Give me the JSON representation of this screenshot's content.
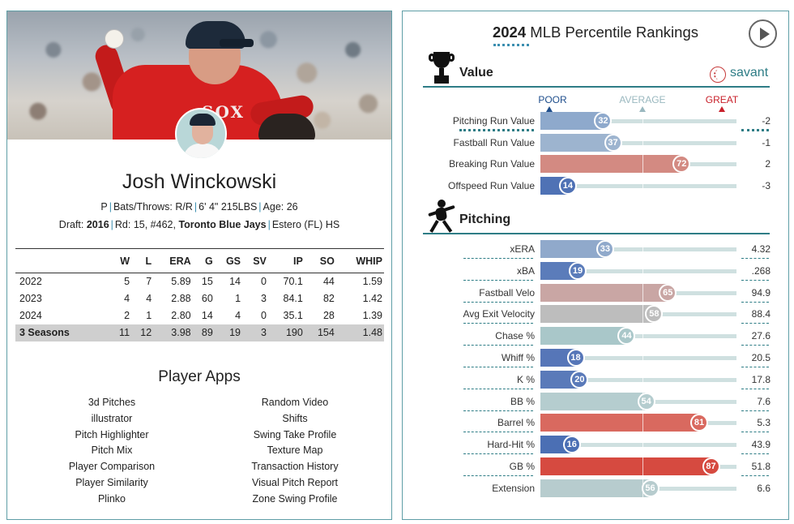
{
  "player": {
    "name": "Josh Winckowski",
    "position": "P",
    "bats_throws": "Bats/Throws: R/R",
    "height_weight": "6' 4\" 215LBS",
    "age": "Age: 26",
    "draft_label": "Draft:",
    "draft_year": "2016",
    "draft_round": "Rd: 15, #462,",
    "draft_team": "Toronto Blue Jays",
    "school": "Estero (FL) HS",
    "jersey_text": "SOX"
  },
  "stats": {
    "headers": [
      "",
      "W",
      "L",
      "ERA",
      "G",
      "GS",
      "SV",
      "IP",
      "SO",
      "WHIP"
    ],
    "rows": [
      [
        "2022",
        "5",
        "7",
        "5.89",
        "15",
        "14",
        "0",
        "70.1",
        "44",
        "1.59"
      ],
      [
        "2023",
        "4",
        "4",
        "2.88",
        "60",
        "1",
        "3",
        "84.1",
        "82",
        "1.42"
      ],
      [
        "2024",
        "2",
        "1",
        "2.80",
        "14",
        "4",
        "0",
        "35.1",
        "28",
        "1.39"
      ]
    ],
    "total": [
      "3 Seasons",
      "11",
      "12",
      "3.98",
      "89",
      "19",
      "3",
      "190",
      "154",
      "1.48"
    ]
  },
  "apps": {
    "title": "Player Apps",
    "left": [
      "3d Pitches",
      "illustrator",
      "Pitch Highlighter",
      "Pitch Mix",
      "Player Comparison",
      "Player Similarity",
      "Plinko"
    ],
    "right": [
      "Random Video",
      "Shifts",
      "Swing Take Profile",
      "Texture Map",
      "Transaction History",
      "Visual Pitch Report",
      "Zone Swing Profile"
    ]
  },
  "rankings": {
    "year": "2024",
    "title": "MLB Percentile Rankings",
    "brand": "savant",
    "scale": {
      "poor": "POOR",
      "average": "AVERAGE",
      "great": "GREAT",
      "poor_color": "#1f4e8c",
      "average_color": "#9ab8bf",
      "great_color": "#c8202a"
    },
    "sections": [
      {
        "label": "Value",
        "icon": "trophy-icon",
        "rows": [
          {
            "metric": "Pitching Run Value",
            "percentile": 32,
            "value": "-2",
            "color": "#8ea9cc"
          },
          {
            "metric": "Fastball Run Value",
            "percentile": 37,
            "value": "-1",
            "color": "#9db4cf"
          },
          {
            "metric": "Breaking Run Value",
            "percentile": 72,
            "value": "2",
            "color": "#d38a82"
          },
          {
            "metric": "Offspeed Run Value",
            "percentile": 14,
            "value": "-3",
            "color": "#4f72b5"
          }
        ]
      },
      {
        "label": "Pitching",
        "icon": "pitcher-icon",
        "rows": [
          {
            "metric": "xERA",
            "percentile": 33,
            "value": "4.32",
            "color": "#90a9cb"
          },
          {
            "metric": "xBA",
            "percentile": 19,
            "value": ".268",
            "color": "#5b7cba"
          },
          {
            "metric": "Fastball Velo",
            "percentile": 65,
            "value": "94.9",
            "color": "#c9a6a4"
          },
          {
            "metric": "Avg Exit Velocity",
            "percentile": 58,
            "value": "88.4",
            "color": "#bdbdbd"
          },
          {
            "metric": "Chase %",
            "percentile": 44,
            "value": "27.6",
            "color": "#a9c7c9"
          },
          {
            "metric": "Whiff %",
            "percentile": 18,
            "value": "20.5",
            "color": "#5676b8"
          },
          {
            "metric": "K %",
            "percentile": 20,
            "value": "17.8",
            "color": "#5a7ab9"
          },
          {
            "metric": "BB %",
            "percentile": 54,
            "value": "7.6",
            "color": "#b5cdcf"
          },
          {
            "metric": "Barrel %",
            "percentile": 81,
            "value": "5.3",
            "color": "#d9695f"
          },
          {
            "metric": "Hard-Hit %",
            "percentile": 16,
            "value": "43.9",
            "color": "#4b6fb4"
          },
          {
            "metric": "GB %",
            "percentile": 87,
            "value": "51.8",
            "color": "#d64a40"
          },
          {
            "metric": "Extension",
            "percentile": 56,
            "value": "6.6",
            "color": "#b7ccce"
          }
        ]
      }
    ]
  }
}
